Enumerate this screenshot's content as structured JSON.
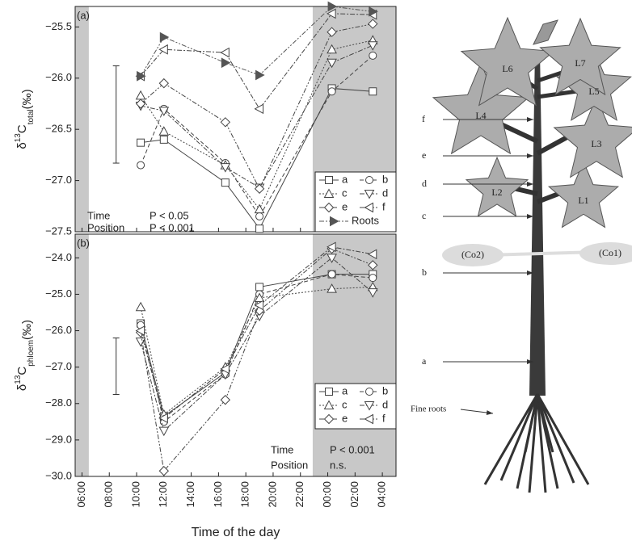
{
  "chart_data": [
    {
      "type": "line",
      "panel_label": "(a)",
      "ylabel": {
        "symbol": "δ",
        "superscript": "13",
        "letter": "C",
        "subscript": "total",
        "unit": "(‰)"
      },
      "x": [
        10.3,
        12.0,
        16.5,
        19.0,
        24.3,
        27.3
      ],
      "xlim": [
        5.5,
        29
      ],
      "ylim": [
        -27.5,
        -25.3
      ],
      "yticks": [
        {
          "value": -27.5,
          "label": "−27.5"
        },
        {
          "value": -27.0,
          "label": "−27.0"
        },
        {
          "value": -26.5,
          "label": "−26.5"
        },
        {
          "value": -26.0,
          "label": "−26.0"
        },
        {
          "value": -25.5,
          "label": "−25.5"
        }
      ],
      "shaded": [
        [
          5.5,
          6.5
        ],
        [
          22.9,
          29
        ]
      ],
      "shade_color": "#c8c8c8",
      "error_bar": {
        "x": 8.5,
        "range": [
          -26.83,
          -25.88
        ]
      },
      "annotations": [
        "Time",
        "P < 0.05",
        "Position",
        "P < 0.001"
      ],
      "legend": "lower right",
      "series": [
        {
          "name": "a",
          "color": "#444",
          "line_style": "solid",
          "marker": "square",
          "values": [
            -26.63,
            -26.6,
            -27.02,
            -27.47,
            -26.1,
            -26.13
          ]
        },
        {
          "name": "b",
          "color": "#444",
          "line_style": "dashed",
          "marker": "circle",
          "values": [
            -26.85,
            -26.3,
            -26.83,
            -27.35,
            -26.13,
            -25.78
          ]
        },
        {
          "name": "c",
          "color": "#444",
          "line_style": "dotted",
          "marker": "triangle-up",
          "values": [
            -26.17,
            -26.52,
            -26.85,
            -27.28,
            -25.72,
            -25.63
          ]
        },
        {
          "name": "d",
          "color": "#444",
          "line_style": "dashdot",
          "marker": "triangle-down",
          "values": [
            -26.27,
            -26.32,
            -26.87,
            -27.07,
            -25.85,
            -25.68
          ]
        },
        {
          "name": "e",
          "color": "#444",
          "line_style": "dashdotdot",
          "marker": "diamond",
          "values": [
            -26.25,
            -26.05,
            -26.43,
            -27.08,
            -25.55,
            -25.47
          ]
        },
        {
          "name": "f",
          "color": "#444",
          "line_style": "dashdot",
          "marker": "triangle-left",
          "values": [
            -25.98,
            -25.72,
            -25.75,
            -26.3,
            -25.37,
            -25.38
          ]
        },
        {
          "name": "Roots",
          "color": "#555",
          "line_style": "dashdotdot",
          "marker": "triangle-right-filled",
          "values": [
            -25.98,
            -25.6,
            -25.85,
            -25.97,
            -25.3,
            -25.35
          ]
        }
      ]
    },
    {
      "type": "line",
      "panel_label": "(b)",
      "ylabel": {
        "symbol": "δ",
        "superscript": "13",
        "letter": "C",
        "subscript": "phloem",
        "unit": "(‰)"
      },
      "xlabel": "Time of the day",
      "x": [
        10.3,
        12.0,
        16.5,
        19.0,
        24.3,
        27.3
      ],
      "xlim": [
        5.5,
        29
      ],
      "ylim": [
        -30,
        -23.35
      ],
      "xticks": [
        {
          "value": 6,
          "label": "06:00"
        },
        {
          "value": 8,
          "label": "08:00"
        },
        {
          "value": 10,
          "label": "10:00"
        },
        {
          "value": 12,
          "label": "12:00"
        },
        {
          "value": 14,
          "label": "14:00"
        },
        {
          "value": 16,
          "label": "16:00"
        },
        {
          "value": 18,
          "label": "18:00"
        },
        {
          "value": 20,
          "label": "20:00"
        },
        {
          "value": 22,
          "label": "22:00"
        },
        {
          "value": 24,
          "label": "00:00"
        },
        {
          "value": 26,
          "label": "02:00"
        },
        {
          "value": 28,
          "label": "04:00"
        }
      ],
      "yticks": [
        {
          "value": -30,
          "label": "−30.0"
        },
        {
          "value": -29,
          "label": "−29.0"
        },
        {
          "value": -28,
          "label": "−28.0"
        },
        {
          "value": -27,
          "label": "−27.0"
        },
        {
          "value": -26,
          "label": "−26.0"
        },
        {
          "value": -25,
          "label": "−25.0"
        },
        {
          "value": -24,
          "label": "−24.0"
        }
      ],
      "shaded": [
        [
          5.5,
          6.5
        ],
        [
          22.9,
          29
        ]
      ],
      "shade_color": "#c8c8c8",
      "error_bar": {
        "x": 8.5,
        "range": [
          -27.75,
          -26.2
        ]
      },
      "annotations": [
        "Time",
        "P < 0.001",
        "Position",
        "n.s."
      ],
      "legend": "lower right",
      "series": [
        {
          "name": "a",
          "color": "#444",
          "line_style": "solid",
          "marker": "square",
          "values": [
            -25.8,
            -28.35,
            -27.15,
            -24.8,
            -24.45,
            -24.45
          ]
        },
        {
          "name": "b",
          "color": "#444",
          "line_style": "dashed",
          "marker": "circle",
          "values": [
            -25.85,
            -28.5,
            -27.2,
            -25.0,
            -24.45,
            -24.55
          ]
        },
        {
          "name": "c",
          "color": "#444",
          "line_style": "dotted",
          "marker": "triangle-up",
          "values": [
            -25.35,
            -28.3,
            -27.0,
            -25.1,
            -24.85,
            -24.8
          ]
        },
        {
          "name": "d",
          "color": "#444",
          "line_style": "dashdot",
          "marker": "triangle-down",
          "values": [
            -26.3,
            -28.75,
            -27.2,
            -25.6,
            -24.0,
            -24.95
          ]
        },
        {
          "name": "e",
          "color": "#444",
          "line_style": "dashdotdot",
          "marker": "diamond",
          "values": [
            -26.05,
            -29.85,
            -27.9,
            -25.45,
            -23.75,
            -24.2
          ]
        },
        {
          "name": "f",
          "color": "#444",
          "line_style": "dashdot",
          "marker": "triangle-left",
          "values": [
            -26.0,
            -28.4,
            -27.05,
            -25.3,
            -23.7,
            -23.9
          ]
        }
      ]
    }
  ],
  "diagram": {
    "leaves": [
      "L1",
      "L2",
      "L3",
      "L4",
      "L5",
      "L6",
      "L7"
    ],
    "collars": [
      "(Co1)",
      "(Co2)"
    ],
    "heights": [
      "a",
      "b",
      "c",
      "d",
      "e",
      "f"
    ],
    "fine_roots": "Fine roots"
  }
}
